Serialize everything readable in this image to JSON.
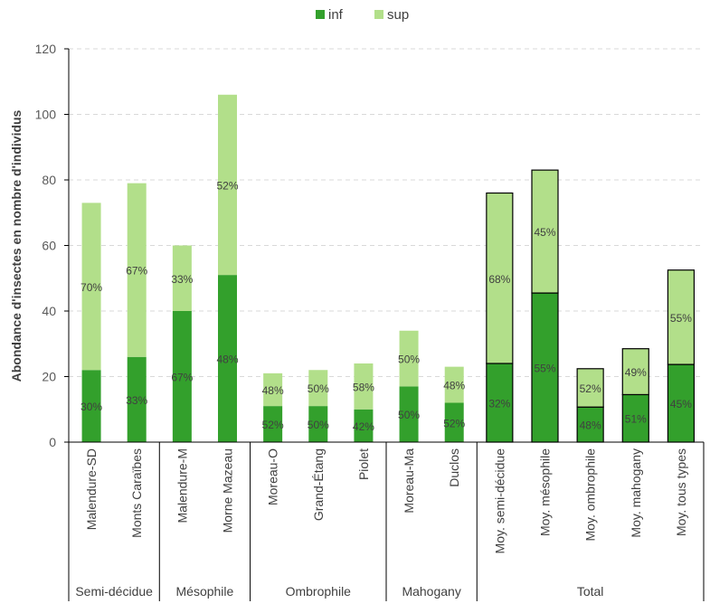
{
  "chart_data": {
    "type": "bar",
    "stacked": true,
    "title": "",
    "ylabel": "Abondance d'insectes en nombre d'individus",
    "xlabel": "",
    "ylim": [
      0,
      120
    ],
    "yticks": [
      0,
      20,
      40,
      60,
      80,
      100,
      120
    ],
    "grid": true,
    "legend_position": "top-center",
    "categories": [
      "Malendure-SD",
      "Monts Caraïbes",
      "Malendure-M",
      "Morne Mazeau",
      "Moreau-O",
      "Grand-Étang",
      "Piolet",
      "Moreau-Ma",
      "Duclos",
      "Moy. semi-décidue",
      "Moy. mésophile",
      "Moy. ombrophile",
      "Moy. mahogany",
      "Moy. tous types"
    ],
    "groups": [
      {
        "label": "Semi-décidue",
        "count": 2
      },
      {
        "label": "Mésophile",
        "count": 2
      },
      {
        "label": "Ombrophile",
        "count": 3
      },
      {
        "label": "Mahogany",
        "count": 2
      },
      {
        "label": "Total",
        "count": 5
      }
    ],
    "outlined_from_index": 9,
    "series": [
      {
        "name": "inf",
        "color": "#33A02C",
        "values": [
          22,
          26,
          40,
          51,
          11,
          11,
          10,
          17,
          12,
          24,
          45.5,
          10.7,
          14.5,
          23.7
        ],
        "labels": [
          "30%",
          "33%",
          "67%",
          "48%",
          "52%",
          "50%",
          "42%",
          "50%",
          "52%",
          "32%",
          "55%",
          "48%",
          "51%",
          "45%"
        ]
      },
      {
        "name": "sup",
        "color": "#B2DF8A",
        "values": [
          51,
          53,
          20,
          55,
          10,
          11,
          14,
          17,
          11,
          52,
          37.5,
          11.7,
          14,
          28.8
        ],
        "labels": [
          "70%",
          "67%",
          "33%",
          "52%",
          "48%",
          "50%",
          "58%",
          "50%",
          "48%",
          "68%",
          "45%",
          "52%",
          "49%",
          "55%"
        ]
      }
    ]
  }
}
